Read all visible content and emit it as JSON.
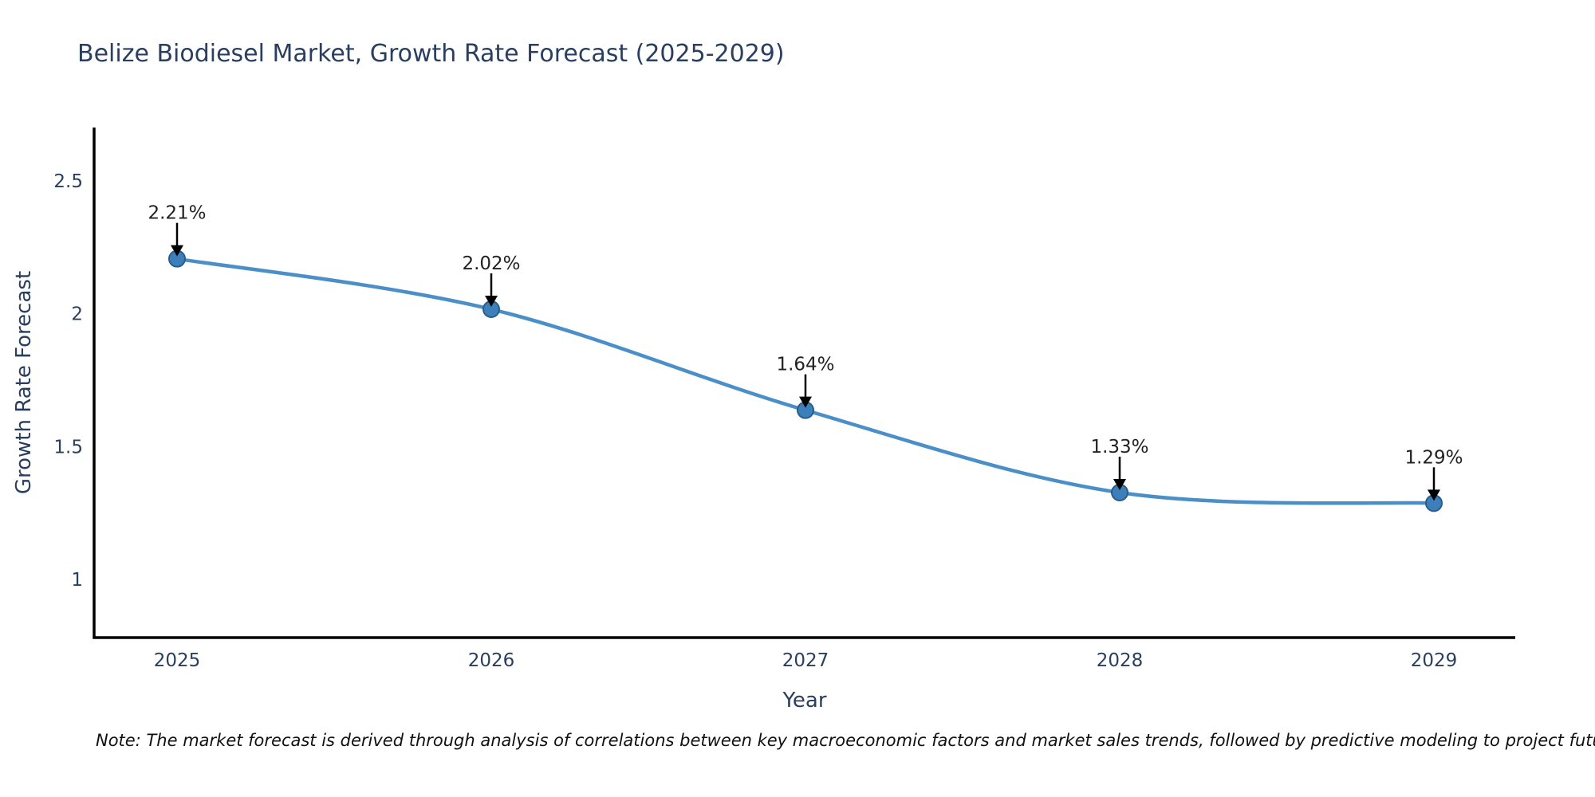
{
  "title": "Belize Biodiesel Market, Growth Rate Forecast (2025-2029)",
  "note": "Note: The market forecast is derived through analysis of correlations between key macroeconomic factors and market sales trends, followed by predictive modeling to project future sales",
  "chart_data": {
    "type": "line",
    "title": "Belize Biodiesel Market, Growth Rate Forecast (2025-2029)",
    "xlabel": "Year",
    "ylabel": "Growth Rate Forecast",
    "categories": [
      "2025",
      "2026",
      "2027",
      "2028",
      "2029"
    ],
    "x": [
      2025,
      2026,
      2027,
      2028,
      2029
    ],
    "values": [
      2.21,
      2.02,
      1.64,
      1.33,
      1.29
    ],
    "point_labels": [
      "2.21%",
      "2.02%",
      "1.64%",
      "1.33%",
      "1.29%"
    ],
    "ytick_labels": [
      "2.5",
      "2",
      "1.5",
      "1"
    ],
    "ytick_values": [
      2.5,
      2.0,
      1.5,
      1.0
    ],
    "ylim": [
      0.78,
      2.7
    ],
    "xlim": [
      2024.74,
      2029.26
    ],
    "line_shape": "spline",
    "grid": false,
    "legend": false,
    "annotations_arrow": true,
    "colors": {
      "line": "#4a8fc7",
      "marker": "#3d7fba",
      "marker_edge": "#2a5d87",
      "axis": "#000000",
      "tick_text": "#2a3f5f",
      "annotation_text": "#222222",
      "arrow": "#000000",
      "title_text": "#2a3f5f",
      "note_text": "#111111"
    }
  }
}
